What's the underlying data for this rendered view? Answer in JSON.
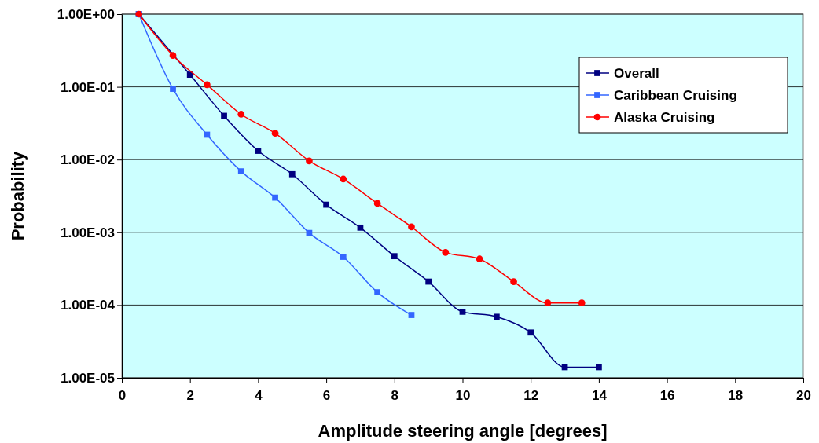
{
  "chart_data": {
    "type": "line",
    "xlabel": "Amplitude steering angle [degrees]",
    "ylabel": "Probability",
    "log": "y",
    "grid": "y",
    "legend": "top right",
    "xlim": [
      0,
      20
    ],
    "xticks": [
      0,
      2,
      4,
      6,
      8,
      10,
      12,
      14,
      16,
      18,
      20
    ],
    "ylim": [
      1e-05,
      1
    ],
    "yticks": [
      {
        "value": 1,
        "label": "1.00E+00"
      },
      {
        "value": 0.1,
        "label": "1.00E-01"
      },
      {
        "value": 0.01,
        "label": "1.00E-02"
      },
      {
        "value": 0.001,
        "label": "1.00E-03"
      },
      {
        "value": 0.0001,
        "label": "1.00E-04"
      },
      {
        "value": 1e-05,
        "label": "1.00E-05"
      }
    ],
    "series": [
      {
        "name": "Overall",
        "color": "#000080",
        "marker": "square",
        "x": [
          0.5,
          2,
          3,
          4,
          5,
          6,
          7,
          8,
          9,
          10,
          11,
          12,
          13,
          14
        ],
        "values": [
          1,
          0.147,
          0.04,
          0.0132,
          0.0063,
          0.0024,
          0.00116,
          0.00047,
          0.00021,
          8.1e-05,
          6.9e-05,
          4.2e-05,
          1.4e-05,
          1.4e-05
        ]
      },
      {
        "name": "Caribbean Cruising",
        "color": "#3366ff",
        "marker": "square",
        "x": [
          0.5,
          1.5,
          2.5,
          3.5,
          4.5,
          5.5,
          6.5,
          7.5,
          8.5
        ],
        "values": [
          1,
          0.094,
          0.022,
          0.0069,
          0.003,
          0.00098,
          0.00046,
          0.00015,
          7.3e-05
        ]
      },
      {
        "name": "Alaska Cruising",
        "color": "#ff0000",
        "marker": "circle",
        "x": [
          0.5,
          1.5,
          2.5,
          3.5,
          4.5,
          5.5,
          6.5,
          7.5,
          8.5,
          9.5,
          10.5,
          11.5,
          12.5,
          13.5
        ],
        "values": [
          1,
          0.27,
          0.107,
          0.042,
          0.023,
          0.0096,
          0.0054,
          0.0025,
          0.00119,
          0.00053,
          0.00043,
          0.00021,
          0.000107,
          0.000107
        ]
      }
    ]
  }
}
